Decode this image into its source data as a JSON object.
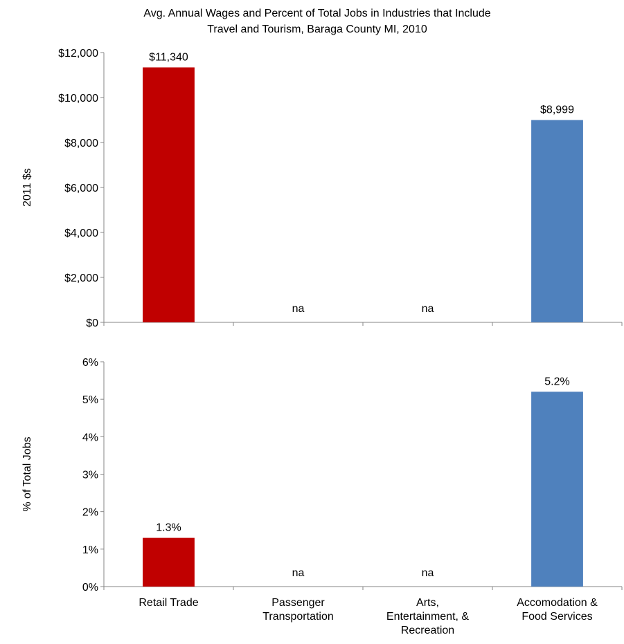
{
  "title_line1": "Avg. Annual Wages and Percent of Total Jobs in Industries that Include",
  "title_line2": "Travel and Tourism, Baraga County MI, 2010",
  "colors": {
    "red_bar": "#c00000",
    "blue_bar": "#4f81bd",
    "axis": "#868686"
  },
  "chart_data": [
    {
      "type": "bar",
      "title": "Avg. Annual Wages and Percent of Total Jobs in Industries that Include Travel and Tourism, Baraga County MI, 2010",
      "ylabel": "2011 $s",
      "categories": [
        "Retail Trade",
        "Passenger Transportation",
        "Arts, Entertainment, & Recreation",
        "Accomodation & Food Services"
      ],
      "values": [
        11340,
        null,
        null,
        8999
      ],
      "data_labels": [
        "$11,340",
        "na",
        "na",
        "$8,999"
      ],
      "bar_colors": [
        "#c00000",
        null,
        null,
        "#4f81bd"
      ],
      "ylim": [
        0,
        12000
      ],
      "yticks": [
        "$0",
        "$2,000",
        "$4,000",
        "$6,000",
        "$8,000",
        "$10,000",
        "$12,000"
      ],
      "grid": false
    },
    {
      "type": "bar",
      "ylabel": "% of Total Jobs",
      "categories": [
        "Retail Trade",
        "Passenger Transportation",
        "Arts, Entertainment, & Recreation",
        "Accomodation & Food Services"
      ],
      "category_label_lines": [
        [
          "Retail Trade"
        ],
        [
          "Passenger",
          "Transportation"
        ],
        [
          "Arts,",
          "Entertainment, &",
          "Recreation"
        ],
        [
          "Accomodation &",
          "Food Services"
        ]
      ],
      "values": [
        1.3,
        null,
        null,
        5.2
      ],
      "data_labels": [
        "1.3%",
        "na",
        "na",
        "5.2%"
      ],
      "bar_colors": [
        "#c00000",
        null,
        null,
        "#4f81bd"
      ],
      "ylim": [
        0,
        6
      ],
      "yticks": [
        "0%",
        "1%",
        "2%",
        "3%",
        "4%",
        "5%",
        "6%"
      ],
      "grid": false
    }
  ]
}
